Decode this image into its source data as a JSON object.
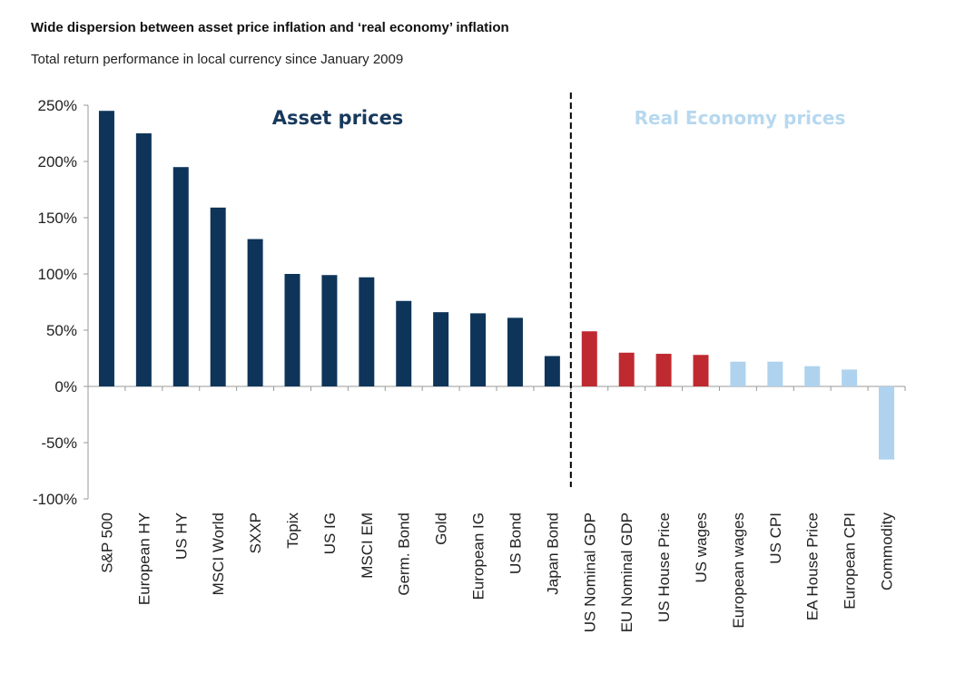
{
  "chart_data": {
    "type": "bar",
    "title": "Wide dispersion between asset price inflation and ‘real economy’ inflation",
    "subtitle": "Total return performance in local currency since January 2009",
    "xlabel": "",
    "ylabel": "",
    "ylim": [
      -100,
      250
    ],
    "yticks": [
      "250%",
      "200%",
      "150%",
      "100%",
      "50%",
      "0%",
      "-50%",
      "-100%"
    ],
    "ytick_values": [
      250,
      200,
      150,
      100,
      50,
      0,
      -50,
      -100
    ],
    "grid": false,
    "categories": [
      "S&P 500",
      "European HY",
      "US HY",
      "MSCI World",
      "SXXP",
      "Topix",
      "US IG",
      "MSCI EM",
      "Germ. Bond",
      "Gold",
      "European IG",
      "US Bond",
      "Japan Bond",
      "US Nominal GDP",
      "EU Nominal GDP",
      "US House Price",
      "US wages",
      "European wages",
      "US CPI",
      "EA House Price",
      "European CPI",
      "Commodity"
    ],
    "values": [
      245,
      225,
      195,
      159,
      131,
      100,
      99,
      97,
      76,
      66,
      65,
      61,
      27,
      49,
      30,
      29,
      28,
      22,
      22,
      18,
      15,
      -65
    ],
    "groups": [
      "asset",
      "asset",
      "asset",
      "asset",
      "asset",
      "asset",
      "asset",
      "asset",
      "asset",
      "asset",
      "asset",
      "asset",
      "asset",
      "real-red",
      "real-red",
      "real-red",
      "real-red",
      "real-blue",
      "real-blue",
      "real-blue",
      "real-blue",
      "real-blue"
    ],
    "colors": {
      "asset": "#0e3559",
      "real-red": "#bf2a30",
      "real-blue": "#afd3ee"
    },
    "annotations": {
      "asset_label": "Asset prices",
      "real_label": "Real Economy prices",
      "asset_label_color": "#17395c",
      "real_label_color": "#b7d8ef"
    },
    "divider": "dashed vertical line between Japan Bond and US Nominal GDP"
  }
}
